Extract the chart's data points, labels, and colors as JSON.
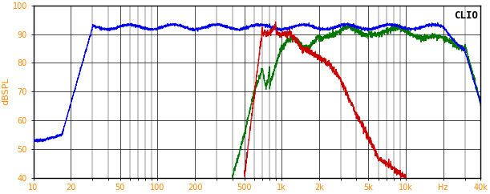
{
  "title": "CLIO",
  "ylabel": "dBSPL",
  "xlabel": "Hz",
  "xmin": 10,
  "xmax": 40000,
  "ymin": 40,
  "ymax": 100,
  "yticks": [
    40,
    50,
    60,
    70,
    80,
    90,
    100
  ],
  "xtick_labels": [
    "10",
    "20",
    "50",
    "100",
    "200",
    "500",
    "1k",
    "2k",
    "5k",
    "10k",
    "Hz",
    "40k"
  ],
  "xtick_positions": [
    10,
    20,
    50,
    100,
    200,
    500,
    1000,
    2000,
    5000,
    10000,
    20000,
    40000
  ],
  "bg_color": "#ffffff",
  "grid_color": "#000000",
  "line_blue": "#0000ee",
  "line_green": "#007700",
  "line_red": "#cc0000",
  "ylabel_color": "#ff8800",
  "tick_color": "#ff8800"
}
